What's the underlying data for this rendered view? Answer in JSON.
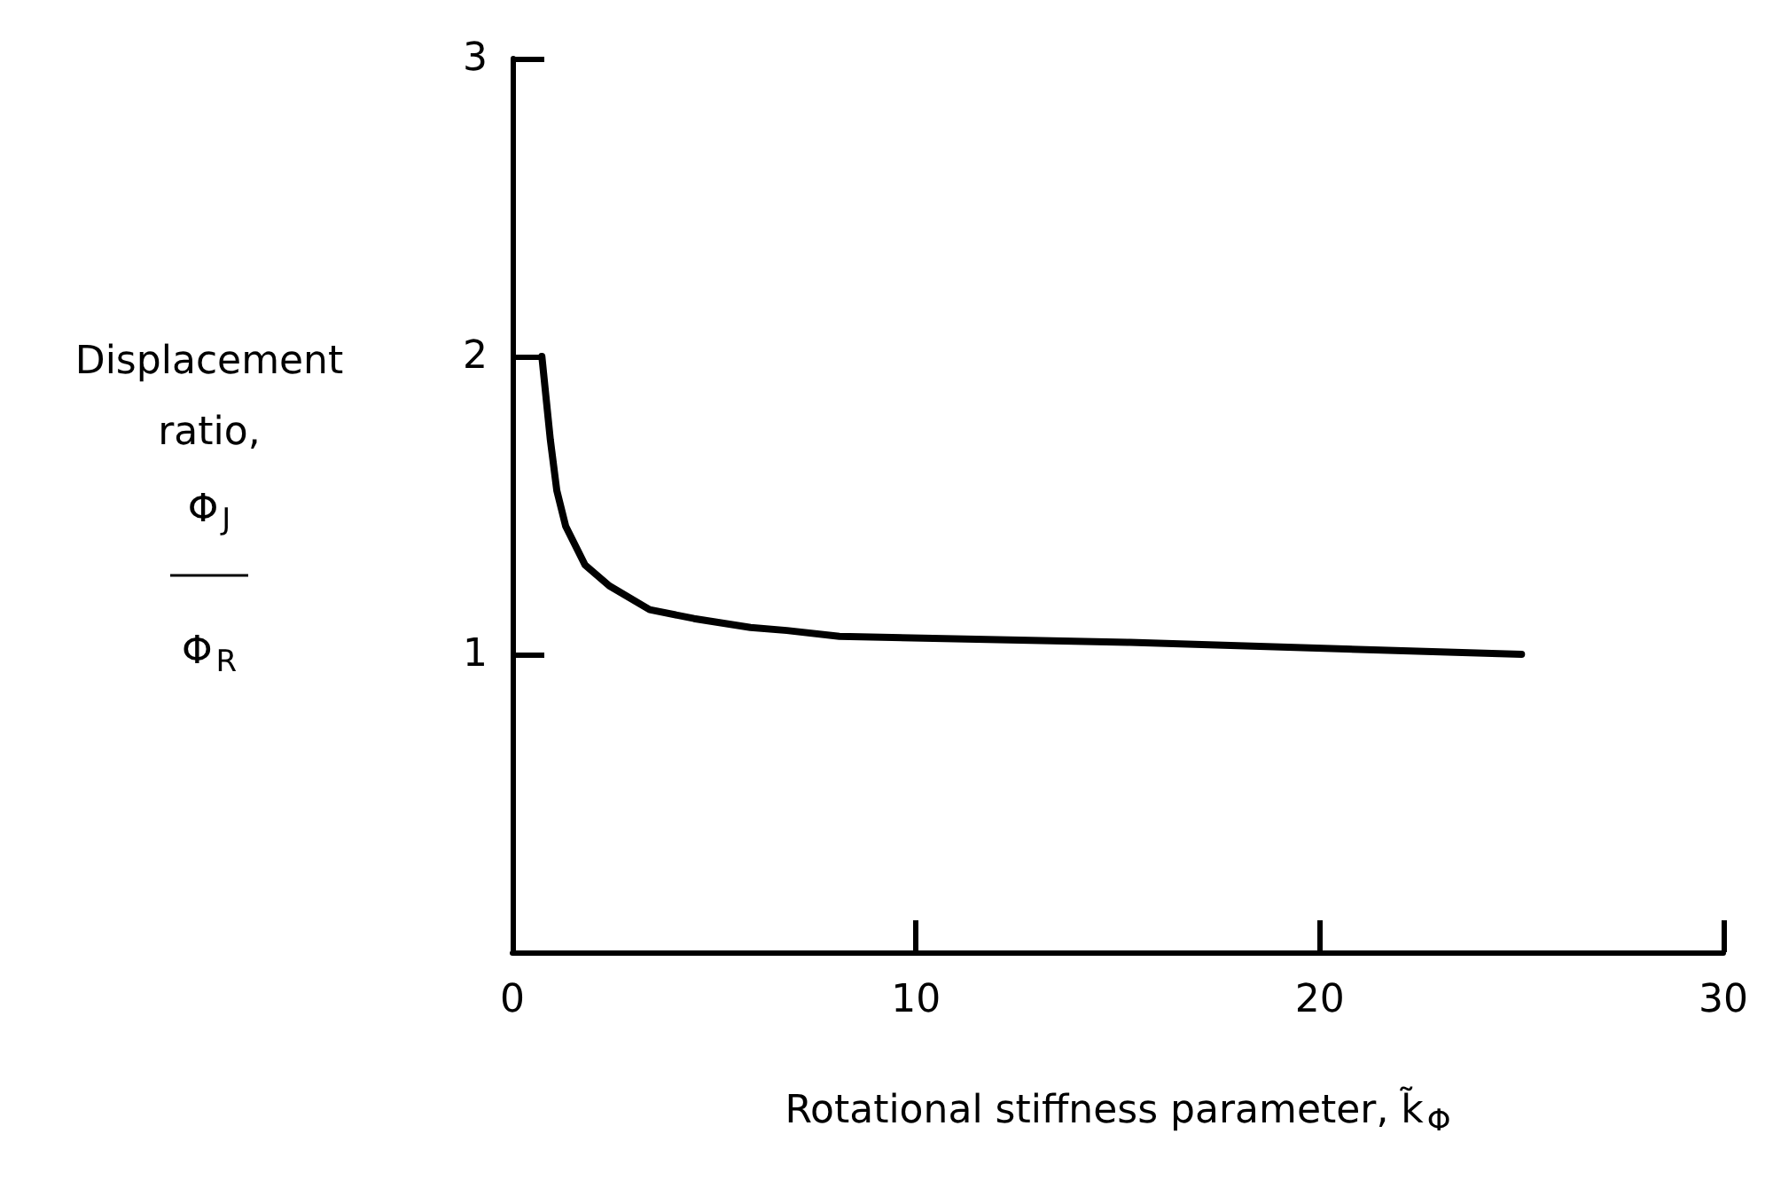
{
  "chart_data": {
    "type": "line",
    "xlabel": "Rotational stiffness parameter, k̃$_{Φ}$",
    "ylabel": "Displacement\nratio,\nΦ$_{J}$\n――\nΦ$_{R}$",
    "xlim": [
      0,
      30
    ],
    "xticks": [
      0,
      10,
      20,
      30
    ],
    "ylim": [
      0,
      3
    ],
    "yticks": [
      1,
      2,
      3
    ],
    "grid": false,
    "marker": "none",
    "line_style": "solid",
    "series": [
      {
        "color": "#000000",
        "x": [
          0.73,
          0.94,
          1.1,
          1.32,
          1.8,
          2.4,
          3.4,
          4.5,
          5.9,
          6.8,
          8.1,
          15.3,
          25
        ],
        "values": [
          2.0,
          1.72,
          1.55,
          1.43,
          1.3,
          1.23,
          1.15,
          1.12,
          1.09,
          1.08,
          1.06,
          1.04,
          1.0
        ]
      }
    ]
  }
}
